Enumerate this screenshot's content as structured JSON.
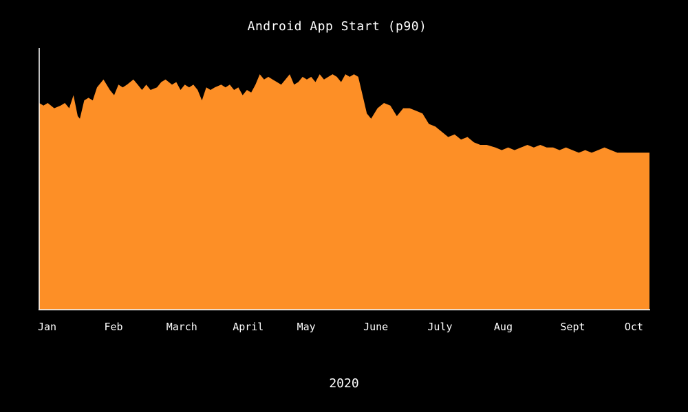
{
  "chart_data": {
    "type": "area",
    "title": "Android App Start (p90)",
    "xlabel": "2020",
    "ylabel": "",
    "fill_color": "#fd8f26",
    "background_color": "#000000",
    "axis_color": "#ffffff",
    "legend": "none",
    "grid": false,
    "x_domain": [
      "2020-01-01",
      "2020-10-12"
    ],
    "ylim": [
      0,
      100
    ],
    "x_ticks": [
      {
        "label": "Jan",
        "date": "2020-01-01"
      },
      {
        "label": "Feb",
        "date": "2020-02-01"
      },
      {
        "label": "March",
        "date": "2020-03-01"
      },
      {
        "label": "April",
        "date": "2020-04-01"
      },
      {
        "label": "May",
        "date": "2020-05-01"
      },
      {
        "label": "June",
        "date": "2020-06-01"
      },
      {
        "label": "July",
        "date": "2020-07-01"
      },
      {
        "label": "Aug",
        "date": "2020-08-01"
      },
      {
        "label": "Sept",
        "date": "2020-09-01"
      },
      {
        "label": "Oct",
        "date": "2020-10-01"
      }
    ],
    "series": [
      {
        "x": [
          "2020-01-01",
          "2020-01-03",
          "2020-01-05",
          "2020-01-08",
          "2020-01-11",
          "2020-01-13",
          "2020-01-15",
          "2020-01-17",
          "2020-01-19",
          "2020-01-20",
          "2020-01-22",
          "2020-01-24",
          "2020-01-26",
          "2020-01-28",
          "2020-01-31",
          "2020-02-03",
          "2020-02-05",
          "2020-02-07",
          "2020-02-09",
          "2020-02-11",
          "2020-02-14",
          "2020-02-16",
          "2020-02-18",
          "2020-02-20",
          "2020-02-22",
          "2020-02-25",
          "2020-02-27",
          "2020-02-29",
          "2020-03-03",
          "2020-03-05",
          "2020-03-07",
          "2020-03-09",
          "2020-03-11",
          "2020-03-13",
          "2020-03-15",
          "2020-03-17",
          "2020-03-19",
          "2020-03-21",
          "2020-03-23",
          "2020-03-26",
          "2020-03-28",
          "2020-03-30",
          "2020-04-01",
          "2020-04-03",
          "2020-04-05",
          "2020-04-07",
          "2020-04-09",
          "2020-04-11",
          "2020-04-13",
          "2020-04-15",
          "2020-04-17",
          "2020-04-19",
          "2020-04-21",
          "2020-04-23",
          "2020-04-25",
          "2020-04-27",
          "2020-04-29",
          "2020-05-01",
          "2020-05-03",
          "2020-05-05",
          "2020-05-07",
          "2020-05-09",
          "2020-05-11",
          "2020-05-13",
          "2020-05-15",
          "2020-05-17",
          "2020-05-19",
          "2020-05-21",
          "2020-05-23",
          "2020-05-25",
          "2020-05-27",
          "2020-05-29",
          "2020-05-31",
          "2020-06-02",
          "2020-06-04",
          "2020-06-07",
          "2020-06-10",
          "2020-06-13",
          "2020-06-16",
          "2020-06-19",
          "2020-06-22",
          "2020-06-25",
          "2020-06-28",
          "2020-07-01",
          "2020-07-04",
          "2020-07-07",
          "2020-07-10",
          "2020-07-13",
          "2020-07-16",
          "2020-07-19",
          "2020-07-22",
          "2020-07-25",
          "2020-07-28",
          "2020-08-01",
          "2020-08-04",
          "2020-08-07",
          "2020-08-10",
          "2020-08-13",
          "2020-08-16",
          "2020-08-19",
          "2020-08-22",
          "2020-08-25",
          "2020-08-28",
          "2020-08-31",
          "2020-09-03",
          "2020-09-06",
          "2020-09-09",
          "2020-09-12",
          "2020-09-15",
          "2020-09-18",
          "2020-09-21",
          "2020-09-24",
          "2020-09-27",
          "2020-09-30",
          "2020-10-03",
          "2020-10-06",
          "2020-10-09",
          "2020-10-12"
        ],
        "y": [
          79,
          78,
          79,
          77,
          78,
          79,
          77,
          82,
          74,
          73,
          80,
          81,
          80,
          85,
          88,
          84,
          82,
          86,
          85,
          86,
          88,
          86,
          84,
          86,
          84,
          85,
          87,
          88,
          86,
          87,
          84,
          86,
          85,
          86,
          84,
          80,
          85,
          84,
          85,
          86,
          85,
          86,
          84,
          85,
          82,
          84,
          83,
          86,
          90,
          88,
          89,
          88,
          87,
          86,
          88,
          90,
          86,
          87,
          89,
          88,
          89,
          87,
          90,
          88,
          89,
          90,
          89,
          87,
          90,
          89,
          90,
          89,
          82,
          75,
          73,
          77,
          79,
          78,
          74,
          77,
          77,
          76,
          75,
          71,
          70,
          68,
          66,
          67,
          65,
          66,
          64,
          63,
          63,
          62,
          61,
          62,
          61,
          62,
          63,
          62,
          63,
          62,
          62,
          61,
          62,
          61,
          60,
          61,
          60,
          61,
          62,
          61,
          60,
          60,
          60,
          60,
          60,
          60
        ]
      }
    ]
  }
}
